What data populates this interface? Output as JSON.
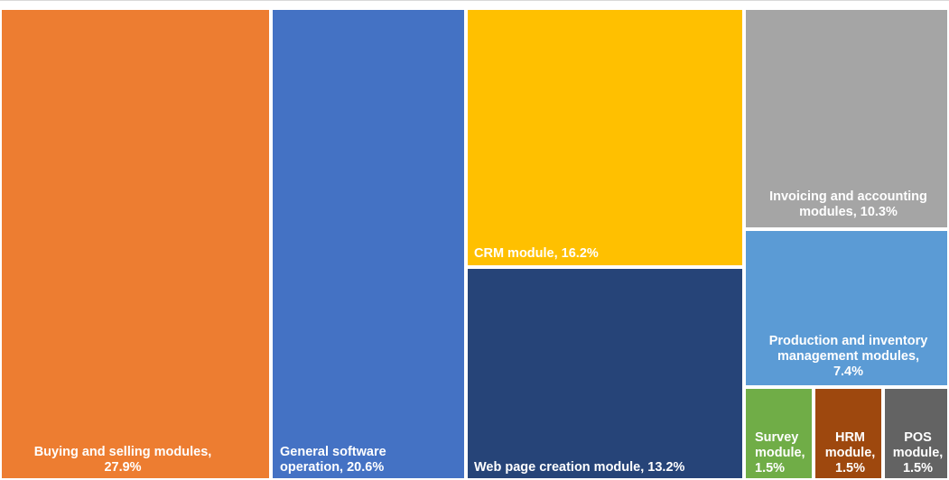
{
  "chart_data": {
    "type": "treemap",
    "title": "",
    "unit": "%",
    "items": [
      {
        "name": "Buying and selling modules",
        "value": 27.9,
        "label": "Buying and selling modules, 27.9%",
        "color": "#ED7D31"
      },
      {
        "name": "General software operation",
        "value": 20.6,
        "label": "General software operation, 20.6%",
        "color": "#4472C4"
      },
      {
        "name": "CRM module",
        "value": 16.2,
        "label": "CRM module, 16.2%",
        "color": "#FFC000"
      },
      {
        "name": "Web page creation module",
        "value": 13.2,
        "label": "Web page creation module, 13.2%",
        "color": "#264478"
      },
      {
        "name": "Invoicing and accounting modules",
        "value": 10.3,
        "label": "Invoicing and accounting modules, 10.3%",
        "color": "#A5A5A5"
      },
      {
        "name": "Production and inventory management modules",
        "value": 7.4,
        "label": "Production and inventory management modules, 7.4%",
        "color": "#5B9BD5"
      },
      {
        "name": "Survey module",
        "value": 1.5,
        "label": "Survey module, 1.5%",
        "color": "#70AD47"
      },
      {
        "name": "HRM module",
        "value": 1.5,
        "label": "HRM module, 1.5%",
        "color": "#9E480E"
      },
      {
        "name": "POS module",
        "value": 1.5,
        "label": "POS module, 1.5%",
        "color": "#636363"
      }
    ]
  }
}
